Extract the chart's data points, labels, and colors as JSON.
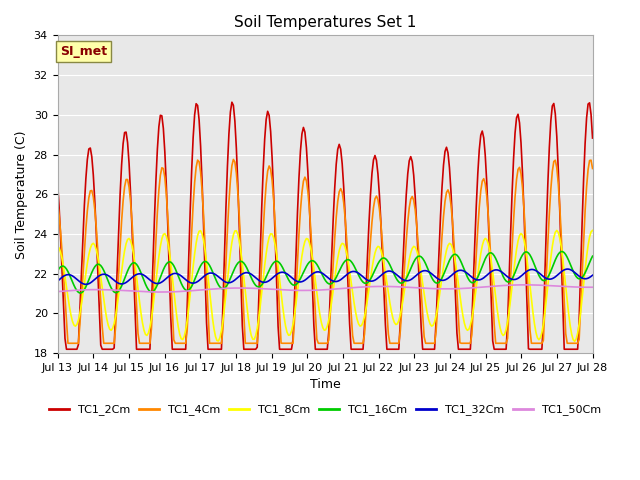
{
  "title": "Soil Temperatures Set 1",
  "xlabel": "Time",
  "ylabel": "Soil Temperature (C)",
  "ylim": [
    18,
    34
  ],
  "yticks": [
    18,
    20,
    22,
    24,
    26,
    28,
    30,
    32,
    34
  ],
  "x_tick_labels": [
    "Jul 13",
    "Jul 14",
    "Jul 15",
    "Jul 16",
    "Jul 17",
    "Jul 18",
    "Jul 19",
    "Jul 20",
    "Jul 21",
    "Jul 22",
    "Jul 23",
    "Jul 24",
    "Jul 25",
    "Jul 26",
    "Jul 27",
    "Jul 28"
  ],
  "series": {
    "TC1_2Cm": {
      "color": "#cc0000",
      "lw": 1.2
    },
    "TC1_4Cm": {
      "color": "#ff8800",
      "lw": 1.2
    },
    "TC1_8Cm": {
      "color": "#ffff00",
      "lw": 1.2
    },
    "TC1_16Cm": {
      "color": "#00cc00",
      "lw": 1.2
    },
    "TC1_32Cm": {
      "color": "#0000cc",
      "lw": 1.2
    },
    "TC1_50Cm": {
      "color": "#dd88dd",
      "lw": 1.2
    }
  },
  "annotation_text": "SI_met",
  "annotation_color": "#880000",
  "annotation_bg": "#ffffaa",
  "annotation_border": "#888844",
  "bg_color": "#e8e8e8",
  "title_fontsize": 11,
  "axis_label_fontsize": 9,
  "tick_fontsize": 8,
  "legend_fontsize": 8
}
